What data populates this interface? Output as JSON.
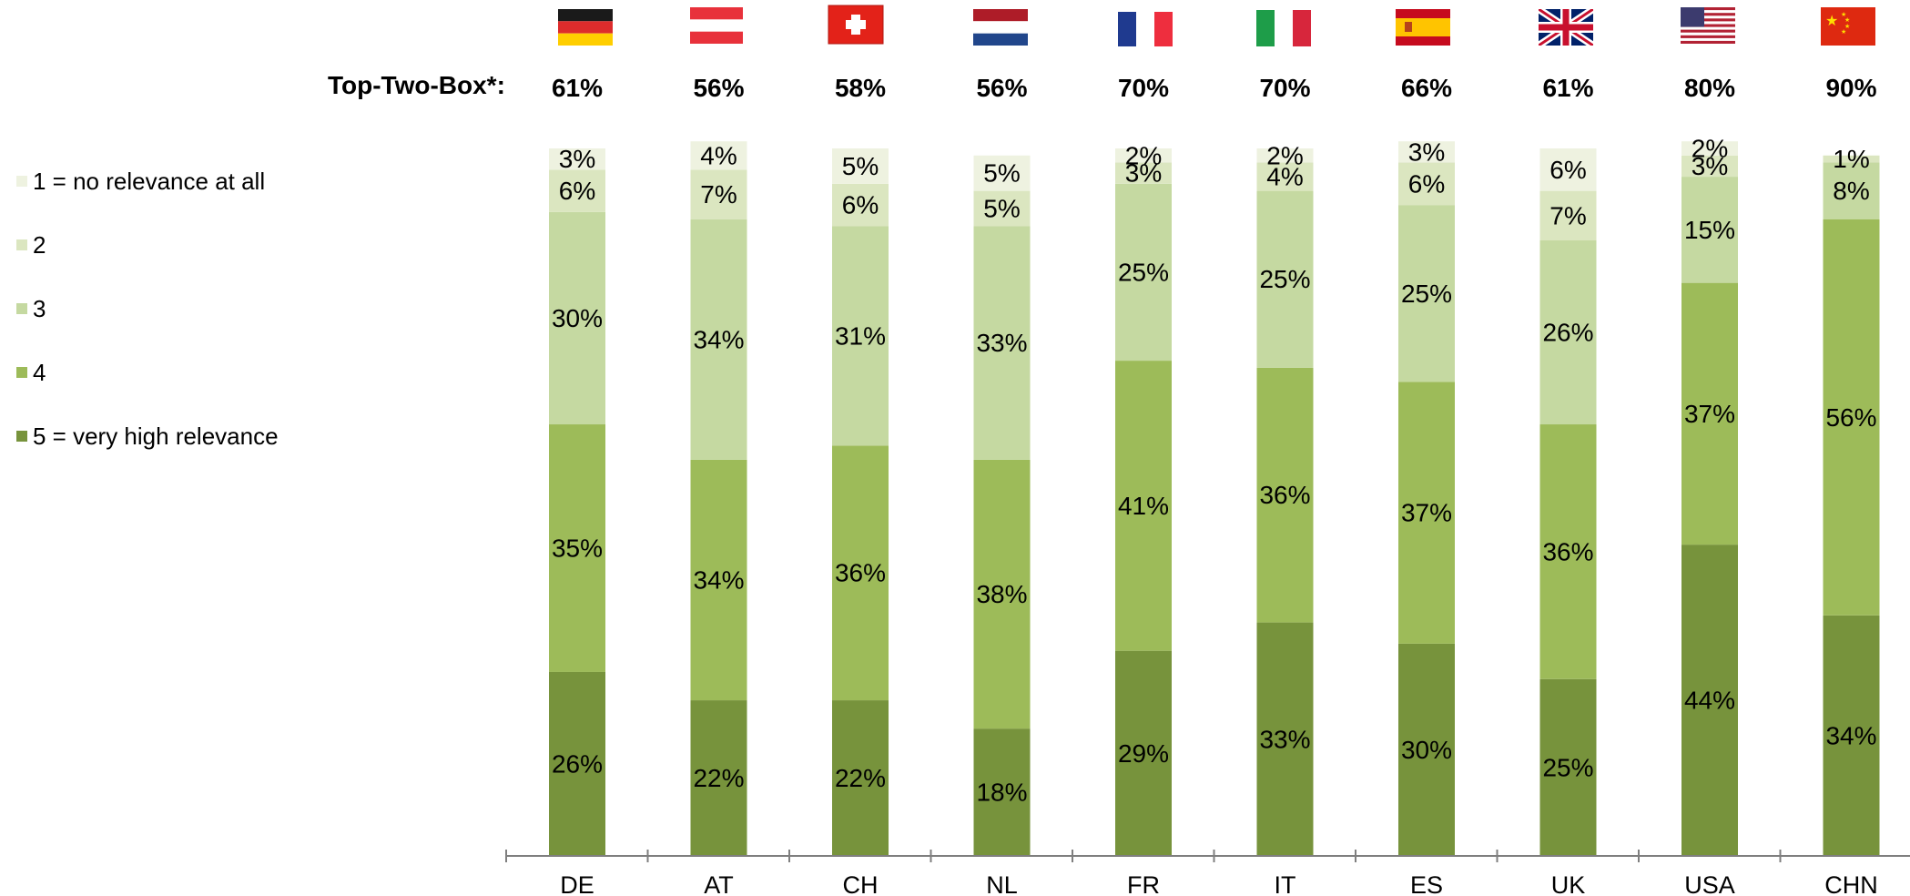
{
  "top_two_box_label": "Top-Two-Box*:",
  "colors": {
    "1": "#eef2e0",
    "2": "#dbe6c0",
    "3": "#c5d9a1",
    "4": "#9dbb59",
    "5": "#77933c",
    "axis": "#7f7f7f"
  },
  "legend": [
    {
      "key": "1",
      "label": "1 = no relevance at all"
    },
    {
      "key": "2",
      "label": "2"
    },
    {
      "key": "3",
      "label": "3"
    },
    {
      "key": "4",
      "label": "4"
    },
    {
      "key": "5",
      "label": "5 = very high relevance"
    }
  ],
  "flags": [
    "germany-flag",
    "austria-flag",
    "switzerland-flag",
    "netherlands-flag",
    "france-flag",
    "italy-flag",
    "spain-flag",
    "uk-flag",
    "usa-flag",
    "china-flag"
  ],
  "chart_data": {
    "type": "bar",
    "stacked": true,
    "categories": [
      "DE",
      "AT",
      "CH",
      "NL",
      "FR",
      "IT",
      "ES",
      "UK",
      "USA",
      "CHN"
    ],
    "top_two_box": [
      "61%",
      "56%",
      "58%",
      "56%",
      "70%",
      "70%",
      "66%",
      "61%",
      "80%",
      "90%"
    ],
    "series": [
      {
        "name": "5 = very high relevance",
        "key": "5",
        "values": [
          26,
          22,
          22,
          18,
          29,
          33,
          30,
          25,
          44,
          34
        ]
      },
      {
        "name": "4",
        "key": "4",
        "values": [
          35,
          34,
          36,
          38,
          41,
          36,
          37,
          36,
          37,
          56
        ]
      },
      {
        "name": "3",
        "key": "3",
        "values": [
          30,
          34,
          31,
          33,
          25,
          25,
          25,
          26,
          15,
          8
        ]
      },
      {
        "name": "2",
        "key": "2",
        "values": [
          6,
          7,
          6,
          5,
          3,
          4,
          6,
          7,
          3,
          1
        ]
      },
      {
        "name": "1 = no relevance at all",
        "key": "1",
        "values": [
          3,
          4,
          5,
          5,
          2,
          2,
          3,
          6,
          2,
          0
        ]
      }
    ],
    "value_suffix": "%",
    "ylim": [
      0,
      100
    ],
    "legend_position": "left",
    "grid": false
  }
}
